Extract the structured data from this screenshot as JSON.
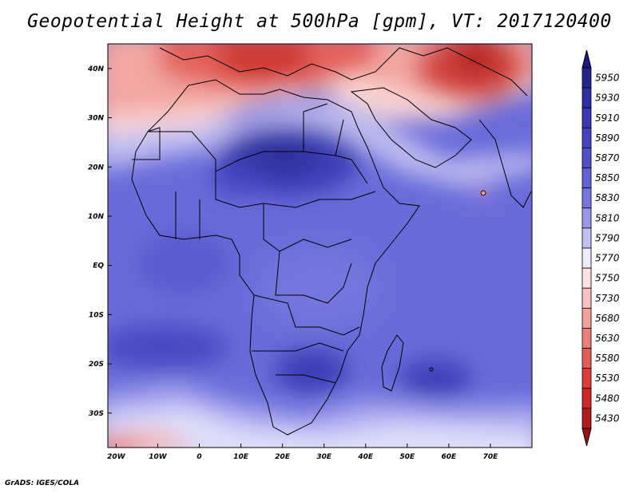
{
  "title": "Geopotential Height at 500hPa [gpm], VT: 2017120400",
  "footer": "GrADS: IGES/COLA",
  "map": {
    "lon_range": [
      -22,
      80
    ],
    "lat_range": [
      -37,
      45
    ],
    "lon_ticks": [
      {
        "v": -20,
        "label": "20W"
      },
      {
        "v": -10,
        "label": "10W"
      },
      {
        "v": 0,
        "label": "0"
      },
      {
        "v": 10,
        "label": "10E"
      },
      {
        "v": 20,
        "label": "20E"
      },
      {
        "v": 30,
        "label": "30E"
      },
      {
        "v": 40,
        "label": "40E"
      },
      {
        "v": 50,
        "label": "50E"
      },
      {
        "v": 60,
        "label": "60E"
      },
      {
        "v": 70,
        "label": "70E"
      }
    ],
    "lat_ticks": [
      {
        "v": 40,
        "label": "40N"
      },
      {
        "v": 30,
        "label": "30N"
      },
      {
        "v": 20,
        "label": "20N"
      },
      {
        "v": 10,
        "label": "10N"
      },
      {
        "v": 0,
        "label": "EQ"
      },
      {
        "v": -10,
        "label": "10S"
      },
      {
        "v": -20,
        "label": "20S"
      },
      {
        "v": -30,
        "label": "30S"
      }
    ]
  },
  "colorbar": {
    "levels": [
      "5950",
      "5930",
      "5910",
      "5890",
      "5870",
      "5850",
      "5830",
      "5810",
      "5790",
      "5770",
      "5750",
      "5730",
      "5680",
      "5630",
      "5580",
      "5530",
      "5480",
      "5430"
    ],
    "colors": [
      "#25258f",
      "#2d2da6",
      "#3838b4",
      "#4343c2",
      "#5050cb",
      "#6262d6",
      "#7676de",
      "#9898e8",
      "#c2c2f2",
      "#ececfb",
      "#fde2e0",
      "#f9c2be",
      "#f4a09b",
      "#ee7e78",
      "#e65d56",
      "#de3b35",
      "#cc2626",
      "#b01c1c"
    ],
    "top_color": "#1a1a80",
    "bottom_color": "#9a1212"
  }
}
